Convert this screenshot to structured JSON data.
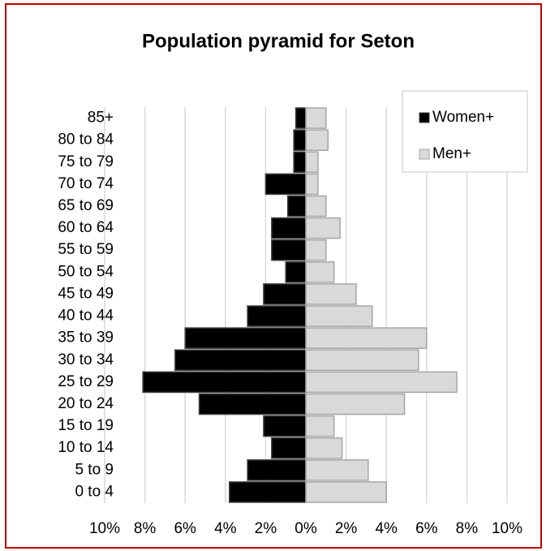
{
  "chart_data": {
    "type": "pyramid",
    "title": "Population pyramid for Seton",
    "categories": [
      "85+",
      "80 to 84",
      "75 to 79",
      "70 to 74",
      "65 to 69",
      "60 to 64",
      "55 to 59",
      "50 to 54",
      "45 to 49",
      "40 to 44",
      "35 to 39",
      "30 to 34",
      "25 to 29",
      "20 to 24",
      "15 to 19",
      "10 to 14",
      "5 to 9",
      "0 to 4"
    ],
    "series": [
      {
        "name": "Women+",
        "color": "#000000",
        "values": [
          -0.5,
          -0.6,
          -0.6,
          -2.0,
          -0.9,
          -1.7,
          -1.7,
          -1.0,
          -2.1,
          -2.9,
          -6.0,
          -6.5,
          -8.1,
          -5.3,
          -2.1,
          -1.7,
          -2.9,
          -3.8
        ]
      },
      {
        "name": "Men+",
        "color": "#d9d9d9",
        "values": [
          1.0,
          1.1,
          0.6,
          0.6,
          1.0,
          1.7,
          1.0,
          1.4,
          2.5,
          3.3,
          6.0,
          5.6,
          7.5,
          4.9,
          1.4,
          1.8,
          3.1,
          4.0
        ]
      }
    ],
    "xlim": [
      -10,
      10
    ],
    "xticks": [
      {
        "value": -10,
        "label": "10%"
      },
      {
        "value": -8,
        "label": "8%"
      },
      {
        "value": -6,
        "label": "6%"
      },
      {
        "value": -4,
        "label": "4%"
      },
      {
        "value": -2,
        "label": "2%"
      },
      {
        "value": 0,
        "label": "0%"
      },
      {
        "value": 2,
        "label": "2%"
      },
      {
        "value": 4,
        "label": "4%"
      },
      {
        "value": 6,
        "label": "6%"
      },
      {
        "value": 8,
        "label": "8%"
      },
      {
        "value": 10,
        "label": "10%"
      }
    ],
    "grid": true,
    "legend": "upper right"
  }
}
